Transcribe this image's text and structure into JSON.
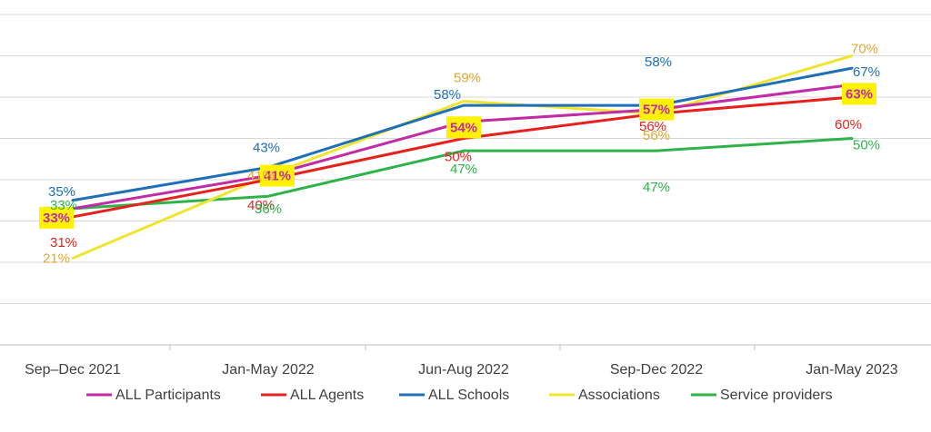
{
  "chart_data": {
    "type": "line",
    "title": "",
    "xlabel": "",
    "ylabel": "",
    "categories": [
      "Sep–Dec 2021",
      "Jan-May 2022",
      "Jun-Aug 2022",
      "Sep-Dec 2022",
      "Jan-May 2023"
    ],
    "ylim": [
      0,
      80
    ],
    "grid": true,
    "legend_position": "bottom",
    "series": [
      {
        "name": "ALL Participants",
        "color": "#c22aa6",
        "values": [
          33,
          41,
          54,
          57,
          63
        ],
        "labels": [
          "33%",
          "41%",
          "54%",
          "57%",
          "63%"
        ],
        "highlighted": true
      },
      {
        "name": "ALL Agents",
        "color": "#e8201c",
        "values": [
          31,
          40,
          50,
          56,
          60
        ],
        "labels": [
          "31%",
          "40%",
          "50%",
          "56%",
          "60%"
        ],
        "highlighted": false
      },
      {
        "name": "ALL Schools",
        "color": "#1f6fb8",
        "values": [
          35,
          43,
          58,
          58,
          67
        ],
        "labels": [
          "35%",
          "43%",
          "58%",
          "58%",
          "67%"
        ],
        "highlighted": false
      },
      {
        "name": "Associations",
        "color": "#f0e52e",
        "values": [
          21,
          41,
          59,
          56,
          70
        ],
        "labels": [
          "21%",
          "41%",
          "59%",
          "56%",
          "70%"
        ],
        "highlighted": false
      },
      {
        "name": "Service providers",
        "color": "#2db34a",
        "values": [
          33,
          36,
          47,
          47,
          50
        ],
        "labels": [
          "33%",
          "36%",
          "47%",
          "47%",
          "50%"
        ],
        "highlighted": false
      }
    ]
  },
  "colors": {
    "label_highlight": "#fff200",
    "associations_label": "#e3a533",
    "grid": "#d9d9d9",
    "axis_text": "#404040"
  }
}
